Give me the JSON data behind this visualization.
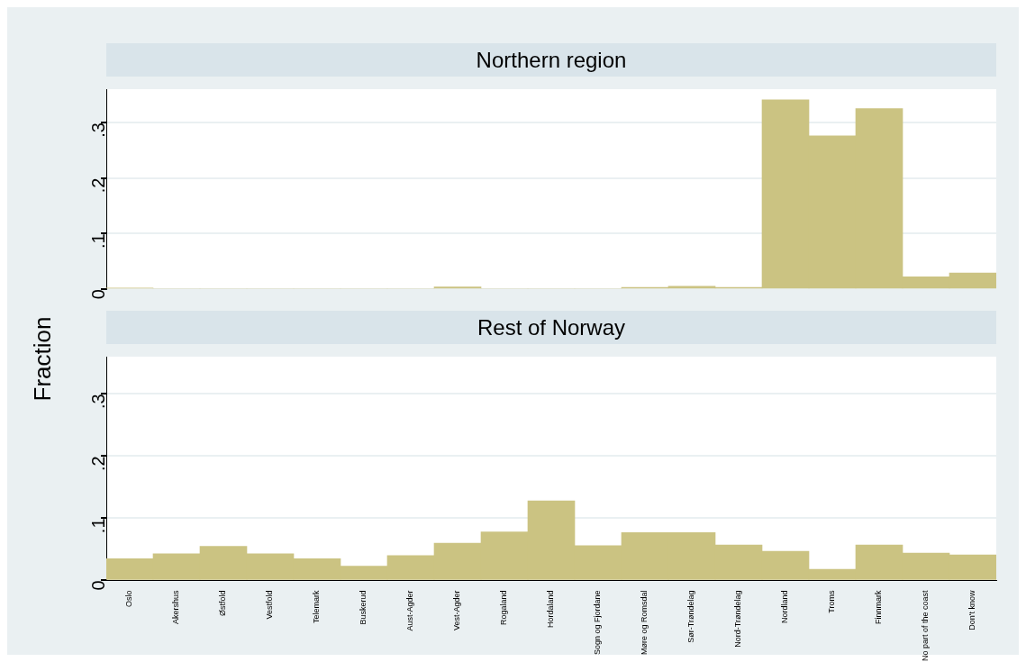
{
  "chart_data": [
    {
      "type": "bar",
      "title": "Northern region",
      "ylabel": "Fraction",
      "categories": [
        null,
        null,
        null,
        null,
        null,
        null,
        null,
        null,
        null,
        null,
        null,
        null,
        null,
        null,
        null,
        null,
        null,
        null,
        null
      ],
      "values": [
        0.002,
        0,
        0,
        0,
        0,
        0,
        0,
        0.004,
        0,
        0,
        0,
        0.003,
        0.005,
        0.003,
        0.341,
        0.276,
        0.325,
        0.022,
        0.029
      ],
      "color": "#cbc382",
      "ylim": [
        0,
        0.36
      ],
      "yticks": [
        {
          "value": 0,
          "label": "0"
        },
        {
          "value": 0.1,
          "label": ".1"
        },
        {
          "value": 0.2,
          "label": ".2"
        },
        {
          "value": 0.3,
          "label": ".3"
        }
      ],
      "grid": "y",
      "legend": false,
      "tick_labels": "y"
    },
    {
      "type": "bar",
      "title": "Rest of Norway",
      "categories": [
        "Oslo",
        "Akershus",
        "Østfold",
        "Vestfold",
        "Telemark",
        "Buskerud",
        "Aust-Agder",
        "Vest-Agder",
        "Rogaland",
        "Hordaland",
        "Sogn og Fjordane",
        "Møre og Romsdal",
        "Sør-Trøndelag",
        "Nord-Trøndelag",
        "Nordland",
        "Troms",
        "Finnmark",
        "No part of the coast",
        "Don't know"
      ],
      "values": [
        0.035,
        0.043,
        0.055,
        0.043,
        0.035,
        0.023,
        0.04,
        0.06,
        0.078,
        0.128,
        0.056,
        0.077,
        0.077,
        0.057,
        0.047,
        0.018,
        0.057,
        0.044,
        0.041
      ],
      "color": "#cbc382",
      "ylim": [
        0,
        0.36
      ],
      "yticks": [
        {
          "value": 0,
          "label": "0"
        },
        {
          "value": 0.1,
          "label": ".1"
        },
        {
          "value": 0.2,
          "label": ".2"
        },
        {
          "value": 0.3,
          "label": ".3"
        }
      ],
      "grid": "y",
      "legend": false
    }
  ]
}
